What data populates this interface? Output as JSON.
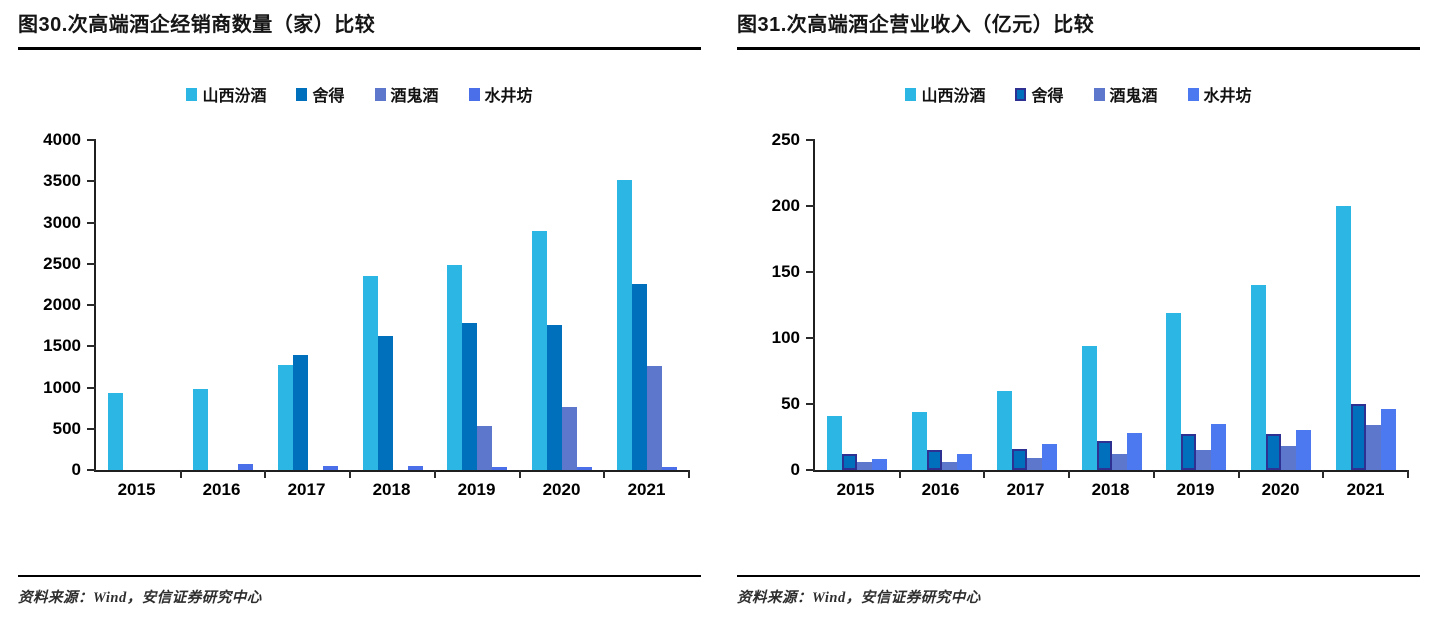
{
  "chart_data": [
    {
      "type": "bar",
      "title": "图30.次高端酒企经销商数量（家）比较",
      "source": "资料来源：Wind，安信证券研究中心",
      "categories": [
        "2015",
        "2016",
        "2017",
        "2018",
        "2019",
        "2020",
        "2021"
      ],
      "series": [
        {
          "key": "fenjiu",
          "name": "山西汾酒",
          "color": "#2BB6E4",
          "values": [
            935,
            985,
            1270,
            2355,
            2490,
            2895,
            3520
          ]
        },
        {
          "key": "shede",
          "name": "舍得",
          "color": "#0070BD",
          "values": [
            0,
            0,
            1400,
            1620,
            1780,
            1760,
            2250
          ]
        },
        {
          "key": "jiuguijiu",
          "name": "酒鬼酒",
          "color": "#5C77CC",
          "values": [
            0,
            0,
            0,
            0,
            530,
            760,
            1260
          ]
        },
        {
          "key": "shuijingfang",
          "name": "水井坊",
          "color": "#4B6FE9",
          "values": [
            0,
            75,
            45,
            45,
            40,
            35,
            35
          ]
        }
      ],
      "xlabel": "",
      "ylabel": "",
      "ylim": [
        0,
        4000
      ],
      "ytick_step": 500,
      "grid": false,
      "legend_position": "top"
    },
    {
      "type": "bar",
      "title": "图31.次高端酒企营业收入（亿元）比较",
      "source": "资料来源：Wind，安信证券研究中心",
      "categories": [
        "2015",
        "2016",
        "2017",
        "2018",
        "2019",
        "2020",
        "2021"
      ],
      "series": [
        {
          "key": "fenjiu",
          "name": "山西汾酒",
          "color": "#2BB6E4",
          "values": [
            41,
            44,
            60,
            94,
            119,
            140,
            200
          ]
        },
        {
          "key": "shede",
          "name": "舍得",
          "color": "#0070BD",
          "border_color": "#2E3192",
          "values": [
            12,
            15,
            16,
            22,
            27,
            27,
            50
          ]
        },
        {
          "key": "jiuguijiu",
          "name": "酒鬼酒",
          "color": "#5C77CC",
          "values": [
            6,
            6,
            9,
            12,
            15,
            18,
            34
          ]
        },
        {
          "key": "shuijingfang",
          "name": "水井坊",
          "color": "#4C79F0",
          "values": [
            8,
            12,
            20,
            28,
            35,
            30,
            46
          ]
        }
      ],
      "xlabel": "",
      "ylabel": "",
      "ylim": [
        0,
        250
      ],
      "ytick_step": 50,
      "grid": false,
      "legend_position": "top"
    }
  ]
}
